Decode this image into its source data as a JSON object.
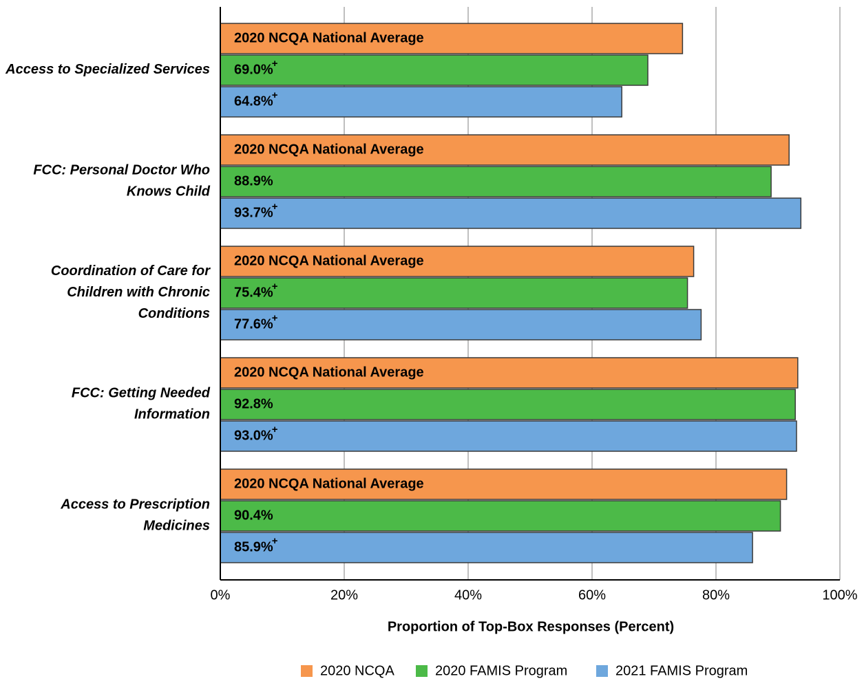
{
  "chart_data": {
    "type": "hbar",
    "categories": [
      "Access to Specialized Services",
      "FCC: Personal Doctor Who\nKnows Child",
      "Coordination of Care for\nChildren with Chronic\nConditions",
      "FCC: Getting Needed\nInformation",
      "Access to Prescription\nMedicines"
    ],
    "series": [
      {
        "name": "2020 NCQA",
        "color": "#f6964d",
        "values": [
          74.6,
          91.8,
          76.4,
          93.2,
          91.4
        ],
        "bar_text": "2020 NCQA National Average"
      },
      {
        "name": "2020 FAMIS Program",
        "color": "#4cba48",
        "values": [
          69.0,
          88.9,
          75.4,
          92.8,
          90.4
        ],
        "value_labels": [
          "69.0%",
          "88.9%",
          "75.4%",
          "92.8%",
          "90.4%"
        ],
        "flagged": [
          true,
          false,
          true,
          false,
          false
        ]
      },
      {
        "name": "2021 FAMIS Program",
        "color": "#6ea7dd",
        "values": [
          64.8,
          93.7,
          77.6,
          93.0,
          85.9
        ],
        "value_labels": [
          "64.8%",
          "93.7%",
          "77.6%",
          "93.0%",
          "85.9%"
        ],
        "flagged": [
          true,
          true,
          true,
          true,
          true
        ]
      }
    ],
    "flag_symbol": "+",
    "xlim": [
      0,
      100
    ],
    "xticks": [
      {
        "value": 0,
        "label": "0%"
      },
      {
        "value": 20,
        "label": "20%"
      },
      {
        "value": 40,
        "label": "40%"
      },
      {
        "value": 60,
        "label": "60%"
      },
      {
        "value": 80,
        "label": "80%"
      },
      {
        "value": 100,
        "label": "100%"
      }
    ],
    "xlabel": "Proportion of Top-Box Responses (Percent)",
    "grid": true,
    "legend": "bottom"
  }
}
